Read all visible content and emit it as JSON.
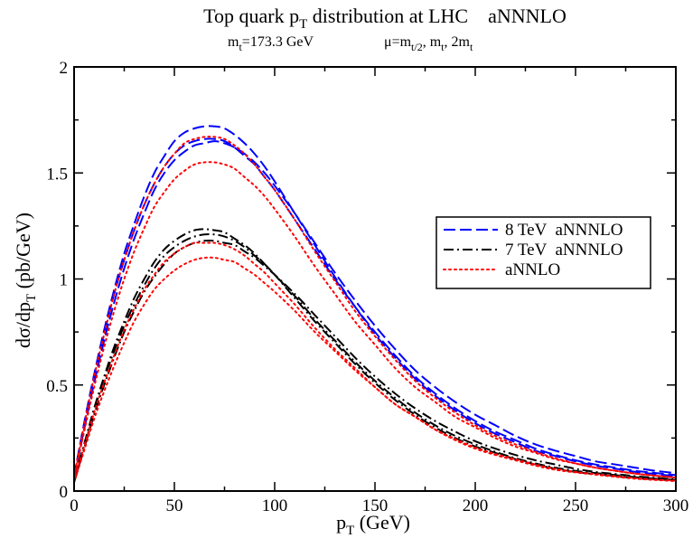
{
  "chart_data": {
    "type": "line",
    "title": {
      "pre": "Top quark p",
      "sub": "T",
      "post": " distribution at LHC    aNNNLO"
    },
    "subtitle": {
      "mass_parts": [
        {
          "t": "m",
          "s": ""
        },
        {
          "t": "t",
          "s": "sub"
        },
        {
          "t": "=173.3 GeV",
          "s": ""
        }
      ],
      "scale_parts": [
        {
          "t": "μ=m",
          "s": ""
        },
        {
          "t": "t/2",
          "s": "sub"
        },
        {
          "t": ", m",
          "s": ""
        },
        {
          "t": "t",
          "s": "sub"
        },
        {
          "t": ", 2m",
          "s": ""
        },
        {
          "t": "t",
          "s": "sub"
        }
      ]
    },
    "xlabel": {
      "pre": "p",
      "sub": "T",
      "post": " (GeV)"
    },
    "ylabel": {
      "pre": "dσ/dp",
      "sub": "T",
      "post": " (pb/GeV)"
    },
    "xlim": [
      0,
      300
    ],
    "ylim": [
      0,
      2
    ],
    "x_ticks": [
      0,
      50,
      100,
      150,
      200,
      250,
      300
    ],
    "y_ticks": [
      0,
      0.5,
      1,
      1.5,
      2
    ],
    "y_tick_labels": [
      "0",
      "0.5",
      "1",
      "1.5",
      "2"
    ],
    "grid": false,
    "legend_position": "right",
    "legend": [
      {
        "label": "8 TeV  aNNNLO",
        "color": "#0000ff",
        "dash": "dashed"
      },
      {
        "label": "7 TeV  aNNNLO",
        "color": "#000000",
        "dash": "dashdot"
      },
      {
        "label": "aNNLO",
        "color": "#ff0000",
        "dash": "dotted"
      }
    ],
    "x": [
      0,
      5,
      10,
      15,
      20,
      25,
      30,
      35,
      40,
      45,
      50,
      55,
      60,
      65,
      70,
      75,
      80,
      85,
      90,
      95,
      100,
      110,
      120,
      130,
      140,
      150,
      160,
      170,
      180,
      190,
      200,
      210,
      220,
      230,
      240,
      250,
      260,
      270,
      280,
      290,
      300
    ],
    "series": [
      {
        "group": "8 TeV  aNNNLO",
        "color": "#0000ff",
        "dash": "dashed",
        "values": [
          0.07,
          0.32,
          0.55,
          0.76,
          0.95,
          1.12,
          1.26,
          1.39,
          1.5,
          1.58,
          1.65,
          1.69,
          1.71,
          1.72,
          1.72,
          1.71,
          1.68,
          1.64,
          1.59,
          1.53,
          1.46,
          1.31,
          1.16,
          1.01,
          0.87,
          0.74,
          0.63,
          0.53,
          0.45,
          0.38,
          0.32,
          0.27,
          0.23,
          0.19,
          0.165,
          0.14,
          0.12,
          0.105,
          0.09,
          0.08,
          0.07
        ]
      },
      {
        "group": "8 TeV  aNNNLO",
        "color": "#0000ff",
        "dash": "dashed",
        "values": [
          0.07,
          0.31,
          0.54,
          0.74,
          0.93,
          1.09,
          1.23,
          1.35,
          1.45,
          1.53,
          1.59,
          1.63,
          1.65,
          1.66,
          1.66,
          1.65,
          1.62,
          1.58,
          1.54,
          1.48,
          1.42,
          1.28,
          1.14,
          1.0,
          0.87,
          0.75,
          0.64,
          0.54,
          0.46,
          0.39,
          0.33,
          0.28,
          0.24,
          0.2,
          0.17,
          0.145,
          0.125,
          0.11,
          0.095,
          0.085,
          0.075
        ]
      },
      {
        "group": "8 TeV  aNNNLO",
        "color": "#0000ff",
        "dash": "dashed",
        "values": [
          0.06,
          0.29,
          0.51,
          0.71,
          0.89,
          1.05,
          1.19,
          1.31,
          1.42,
          1.5,
          1.56,
          1.6,
          1.63,
          1.64,
          1.65,
          1.64,
          1.62,
          1.59,
          1.55,
          1.5,
          1.44,
          1.31,
          1.17,
          1.03,
          0.9,
          0.78,
          0.67,
          0.57,
          0.49,
          0.42,
          0.36,
          0.31,
          0.26,
          0.22,
          0.19,
          0.165,
          0.14,
          0.125,
          0.11,
          0.095,
          0.085
        ]
      },
      {
        "group": "7 TeV  aNNNLO",
        "color": "#000000",
        "dash": "dashdot",
        "values": [
          0.05,
          0.22,
          0.39,
          0.54,
          0.68,
          0.8,
          0.91,
          1.0,
          1.08,
          1.14,
          1.18,
          1.21,
          1.23,
          1.235,
          1.23,
          1.22,
          1.19,
          1.16,
          1.12,
          1.07,
          1.02,
          0.91,
          0.8,
          0.7,
          0.6,
          0.51,
          0.43,
          0.36,
          0.3,
          0.25,
          0.21,
          0.18,
          0.15,
          0.125,
          0.105,
          0.09,
          0.08,
          0.07,
          0.06,
          0.055,
          0.05
        ]
      },
      {
        "group": "7 TeV  aNNNLO",
        "color": "#000000",
        "dash": "dashdot",
        "values": [
          0.05,
          0.22,
          0.38,
          0.53,
          0.66,
          0.78,
          0.88,
          0.97,
          1.05,
          1.11,
          1.15,
          1.18,
          1.2,
          1.21,
          1.21,
          1.2,
          1.18,
          1.15,
          1.11,
          1.07,
          1.02,
          0.92,
          0.81,
          0.71,
          0.61,
          0.52,
          0.44,
          0.37,
          0.31,
          0.26,
          0.22,
          0.185,
          0.155,
          0.13,
          0.11,
          0.095,
          0.085,
          0.075,
          0.065,
          0.058,
          0.052
        ]
      },
      {
        "group": "7 TeV  aNNNLO",
        "color": "#000000",
        "dash": "dashdot",
        "values": [
          0.04,
          0.2,
          0.36,
          0.5,
          0.63,
          0.75,
          0.85,
          0.94,
          1.01,
          1.07,
          1.12,
          1.15,
          1.17,
          1.18,
          1.18,
          1.17,
          1.16,
          1.13,
          1.1,
          1.06,
          1.02,
          0.93,
          0.83,
          0.73,
          0.63,
          0.54,
          0.46,
          0.39,
          0.33,
          0.28,
          0.235,
          0.2,
          0.17,
          0.145,
          0.125,
          0.105,
          0.09,
          0.08,
          0.07,
          0.062,
          0.055
        ]
      },
      {
        "group": "aNNLO",
        "color": "#ff0000",
        "dash": "dotted",
        "values": [
          0.07,
          0.31,
          0.54,
          0.74,
          0.93,
          1.09,
          1.23,
          1.35,
          1.45,
          1.53,
          1.59,
          1.64,
          1.66,
          1.67,
          1.67,
          1.66,
          1.63,
          1.59,
          1.54,
          1.48,
          1.42,
          1.28,
          1.13,
          0.99,
          0.85,
          0.73,
          0.62,
          0.52,
          0.44,
          0.37,
          0.31,
          0.26,
          0.22,
          0.185,
          0.155,
          0.13,
          0.11,
          0.095,
          0.082,
          0.072,
          0.063
        ]
      },
      {
        "group": "aNNLO",
        "color": "#ff0000",
        "dash": "dotted",
        "values": [
          0.06,
          0.28,
          0.49,
          0.68,
          0.85,
          1.0,
          1.13,
          1.24,
          1.34,
          1.41,
          1.47,
          1.51,
          1.54,
          1.55,
          1.55,
          1.54,
          1.52,
          1.48,
          1.44,
          1.39,
          1.33,
          1.2,
          1.06,
          0.93,
          0.8,
          0.69,
          0.58,
          0.49,
          0.42,
          0.35,
          0.3,
          0.25,
          0.21,
          0.18,
          0.15,
          0.13,
          0.11,
          0.095,
          0.082,
          0.072,
          0.064
        ]
      },
      {
        "group": "aNNLO",
        "color": "#ff0000",
        "dash": "dotted",
        "values": [
          0.05,
          0.21,
          0.37,
          0.51,
          0.64,
          0.76,
          0.86,
          0.95,
          1.02,
          1.08,
          1.12,
          1.15,
          1.17,
          1.17,
          1.17,
          1.16,
          1.14,
          1.11,
          1.07,
          1.03,
          0.98,
          0.88,
          0.77,
          0.67,
          0.58,
          0.49,
          0.41,
          0.35,
          0.29,
          0.24,
          0.2,
          0.17,
          0.145,
          0.12,
          0.1,
          0.088,
          0.077,
          0.067,
          0.058,
          0.052,
          0.047
        ]
      },
      {
        "group": "aNNLO",
        "color": "#ff0000",
        "dash": "dotted",
        "values": [
          0.04,
          0.19,
          0.34,
          0.47,
          0.59,
          0.7,
          0.8,
          0.88,
          0.95,
          1.0,
          1.04,
          1.07,
          1.09,
          1.1,
          1.1,
          1.09,
          1.08,
          1.05,
          1.02,
          0.98,
          0.94,
          0.85,
          0.75,
          0.66,
          0.57,
          0.49,
          0.41,
          0.35,
          0.29,
          0.245,
          0.205,
          0.175,
          0.15,
          0.125,
          0.105,
          0.09,
          0.08,
          0.07,
          0.06,
          0.054,
          0.048
        ]
      }
    ]
  }
}
